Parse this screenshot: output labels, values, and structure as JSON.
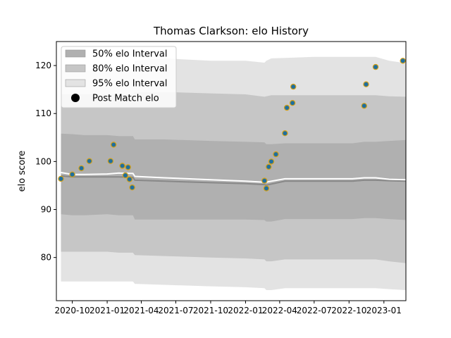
{
  "chart_data": {
    "type": "line",
    "title": "Thomas Clarkson: elo History",
    "xlabel": "",
    "ylabel": "elo score",
    "xlim": [
      "2020-08-20",
      "2023-02-28"
    ],
    "ylim": [
      71,
      125
    ],
    "x_ticks": [
      "2020-10-01",
      "2021-01-01",
      "2021-04-01",
      "2021-07-01",
      "2021-10-01",
      "2022-01-01",
      "2022-04-01",
      "2022-07-01",
      "2022-10-01",
      "2023-01-01"
    ],
    "x_tick_labels": [
      "2020-10",
      "2021-01",
      "2021-04",
      "2021-07",
      "2021-10",
      "2022-01",
      "2022-04",
      "2022-07",
      "2022-10",
      "2023-01"
    ],
    "y_ticks": [
      80,
      90,
      100,
      110,
      120
    ],
    "grid": false,
    "legend": {
      "position": "top-left",
      "entries": [
        {
          "label": "50% elo Interval",
          "kind": "patch",
          "color": "#b0b0b0"
        },
        {
          "label": "80% elo Interval",
          "kind": "patch",
          "color": "#c6c6c6"
        },
        {
          "label": "95% elo Interval",
          "kind": "patch",
          "color": "#e3e3e3"
        },
        {
          "label": "Post Match elo",
          "kind": "dot",
          "color": "#000000"
        }
      ]
    },
    "colors": {
      "band95": "#e3e3e3",
      "band80": "#c6c6c6",
      "band50": "#b0b0b0",
      "median_line": "#888888",
      "mean_line": "#ffffff",
      "point_fill": "#1f6f9f",
      "point_edge": "#d4a017"
    },
    "bands": {
      "x": [
        "2020-09-01",
        "2020-10-01",
        "2020-11-01",
        "2021-01-01",
        "2021-02-01",
        "2021-03-10",
        "2021-03-15",
        "2021-06-01",
        "2021-10-01",
        "2022-01-01",
        "2022-02-20",
        "2022-02-25",
        "2022-03-10",
        "2022-04-15",
        "2022-07-01",
        "2022-10-10",
        "2022-11-10",
        "2022-12-10",
        "2023-01-15",
        "2023-03-01"
      ],
      "p95_low": [
        75.0,
        75.0,
        75.0,
        75.0,
        75.0,
        75.0,
        74.5,
        74.3,
        74.0,
        73.8,
        73.6,
        73.2,
        73.2,
        73.6,
        73.6,
        73.6,
        73.6,
        73.6,
        73.4,
        73.2
      ],
      "p95_high": [
        119.0,
        119.0,
        119.0,
        119.0,
        119.0,
        119.0,
        121.0,
        121.5,
        121.0,
        121.0,
        120.6,
        121.0,
        121.5,
        121.6,
        121.8,
        121.8,
        121.8,
        121.8,
        121.0,
        120.5
      ],
      "p80_low": [
        81.2,
        81.2,
        81.2,
        81.2,
        81.0,
        81.0,
        80.5,
        80.3,
        80.0,
        79.8,
        79.6,
        79.2,
        79.2,
        79.6,
        79.6,
        79.6,
        79.6,
        79.6,
        79.2,
        78.8
      ],
      "p80_high": [
        114.0,
        114.0,
        114.0,
        114.0,
        114.0,
        114.0,
        114.5,
        114.5,
        114.2,
        114.0,
        113.5,
        113.6,
        113.8,
        113.8,
        113.8,
        113.8,
        113.8,
        113.8,
        113.6,
        113.5
      ],
      "p50_low": [
        89.0,
        88.8,
        88.8,
        89.0,
        88.8,
        88.8,
        87.9,
        87.9,
        87.9,
        87.9,
        87.8,
        87.5,
        87.5,
        88.0,
        88.0,
        88.0,
        88.2,
        88.2,
        88.0,
        87.8
      ],
      "p50_high": [
        105.8,
        105.7,
        105.5,
        105.5,
        105.3,
        105.3,
        104.6,
        104.6,
        104.3,
        104.1,
        104.0,
        103.6,
        103.6,
        103.8,
        103.8,
        103.8,
        104.1,
        104.1,
        104.3,
        104.5
      ],
      "median": [
        97.0,
        96.8,
        96.8,
        96.8,
        96.8,
        96.7,
        96.1,
        95.9,
        95.6,
        95.4,
        95.2,
        95.1,
        95.3,
        95.9,
        95.9,
        95.9,
        96.1,
        96.1,
        96.0,
        95.9
      ],
      "mean": [
        97.7,
        97.3,
        97.3,
        97.4,
        97.6,
        97.5,
        96.9,
        96.6,
        96.2,
        95.9,
        95.7,
        95.7,
        95.9,
        96.4,
        96.4,
        96.4,
        96.6,
        96.6,
        96.3,
        96.2
      ]
    },
    "points": [
      {
        "x": "2020-09-01",
        "y": 96.4
      },
      {
        "x": "2020-10-01",
        "y": 97.3
      },
      {
        "x": "2020-10-25",
        "y": 98.6
      },
      {
        "x": "2020-11-15",
        "y": 100.1
      },
      {
        "x": "2021-01-10",
        "y": 100.1
      },
      {
        "x": "2021-01-18",
        "y": 103.5
      },
      {
        "x": "2021-02-10",
        "y": 99.1
      },
      {
        "x": "2021-02-18",
        "y": 97.1
      },
      {
        "x": "2021-02-25",
        "y": 98.8
      },
      {
        "x": "2021-03-01",
        "y": 96.3
      },
      {
        "x": "2021-03-08",
        "y": 94.6
      },
      {
        "x": "2022-02-20",
        "y": 96.0
      },
      {
        "x": "2022-02-25",
        "y": 94.4
      },
      {
        "x": "2022-03-03",
        "y": 98.9
      },
      {
        "x": "2022-03-10",
        "y": 100.0
      },
      {
        "x": "2022-03-22",
        "y": 101.5
      },
      {
        "x": "2022-04-15",
        "y": 105.9
      },
      {
        "x": "2022-04-20",
        "y": 111.2
      },
      {
        "x": "2022-05-05",
        "y": 112.2
      },
      {
        "x": "2022-05-07",
        "y": 115.6
      },
      {
        "x": "2022-11-10",
        "y": 111.6
      },
      {
        "x": "2022-11-15",
        "y": 116.1
      },
      {
        "x": "2022-12-10",
        "y": 119.7
      },
      {
        "x": "2023-02-20",
        "y": 121.0
      }
    ]
  }
}
